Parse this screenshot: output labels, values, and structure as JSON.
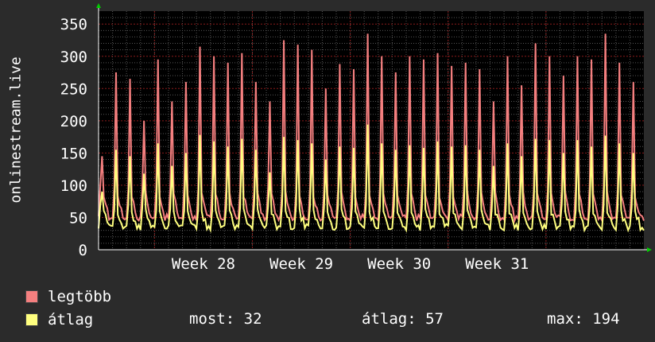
{
  "colors": {
    "background": "#2b2b2b",
    "plot_bg": "#000000",
    "grid_minor": "#555555",
    "grid_major": "#8b1a1a",
    "max_series": "#f47f7f",
    "avg_series": "#ffff7f",
    "text": "#ffffff",
    "axis_arrow": "#00cc00"
  },
  "ylabel": "onlinestream.live",
  "legend": {
    "max_label": "legtöbb",
    "avg_label": "átlag"
  },
  "stats": {
    "current": "most: 32",
    "average": "átlag: 57",
    "maximum": "max: 194"
  },
  "chart_data": {
    "type": "area",
    "title": "",
    "xlabel": "",
    "ylabel": "onlinestream.live",
    "ylim": [
      0,
      370
    ],
    "yticks": [
      0,
      50,
      100,
      150,
      200,
      250,
      300,
      350
    ],
    "xticks": [
      "Week 28",
      "Week 29",
      "Week 30",
      "Week 31"
    ],
    "grid": true,
    "days": 39,
    "series": [
      {
        "name": "legtöbb",
        "daily_peaks": [
          145,
          275,
          265,
          200,
          295,
          230,
          260,
          315,
          300,
          290,
          305,
          260,
          230,
          325,
          318,
          310,
          250,
          288,
          280,
          335,
          300,
          275,
          300,
          295,
          305,
          285,
          290,
          280,
          230,
          300,
          255,
          320,
          300,
          270,
          300,
          295,
          335,
          290,
          260
        ],
        "baseline_low": 45,
        "baseline_high": 90
      },
      {
        "name": "átlag",
        "daily_peaks": [
          90,
          155,
          145,
          118,
          165,
          130,
          150,
          178,
          168,
          160,
          172,
          155,
          120,
          175,
          170,
          165,
          140,
          160,
          158,
          194,
          165,
          155,
          162,
          158,
          168,
          160,
          162,
          155,
          130,
          165,
          145,
          172,
          170,
          150,
          170,
          160,
          177,
          165,
          150
        ],
        "baseline_low": 30,
        "baseline_high": 60
      }
    ]
  }
}
